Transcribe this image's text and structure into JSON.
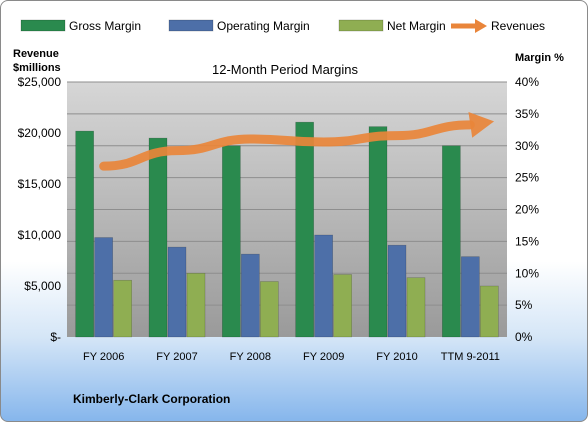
{
  "chart_data": {
    "type": "bar",
    "title": "12-Month Period Margins",
    "company": "Kimberly-Clark Corporation",
    "ylabel_left_line1": "Revenue",
    "ylabel_left_line2": "$millions",
    "ylabel_right": "Margin %",
    "categories": [
      "FY 2006",
      "FY 2007",
      "FY 2008",
      "FY 2009",
      "FY 2010",
      "TTM 9-2011"
    ],
    "left_axis": {
      "ylim": [
        0,
        25000
      ],
      "tick_labels": [
        "$-",
        "$5,000",
        "$10,000",
        "$15,000",
        "$20,000",
        "$25,000"
      ]
    },
    "right_axis": {
      "ylim": [
        0,
        40
      ],
      "tick_labels": [
        "0%",
        "5%",
        "10%",
        "15%",
        "20%",
        "25%",
        "30%",
        "35%",
        "40%"
      ]
    },
    "series": [
      {
        "name": "Gross Margin",
        "kind": "bar",
        "axis": "right",
        "color": "#2a8a4e",
        "values": [
          32.3,
          31.2,
          30.0,
          33.7,
          33.0,
          30.0
        ]
      },
      {
        "name": "Operating Margin",
        "kind": "bar",
        "axis": "right",
        "color": "#4d6fa8",
        "values": [
          15.6,
          14.1,
          13.0,
          16.0,
          14.4,
          12.6
        ]
      },
      {
        "name": "Net Margin",
        "kind": "bar",
        "axis": "right",
        "color": "#8fae52",
        "values": [
          8.9,
          10.0,
          8.7,
          9.8,
          9.3,
          8.0
        ]
      },
      {
        "name": "Revenues",
        "kind": "line",
        "axis": "left",
        "color": "#e9853a",
        "values": [
          16747,
          18266,
          19415,
          19115,
          19746,
          20800
        ]
      }
    ],
    "grid": true,
    "legend_position": "top"
  }
}
